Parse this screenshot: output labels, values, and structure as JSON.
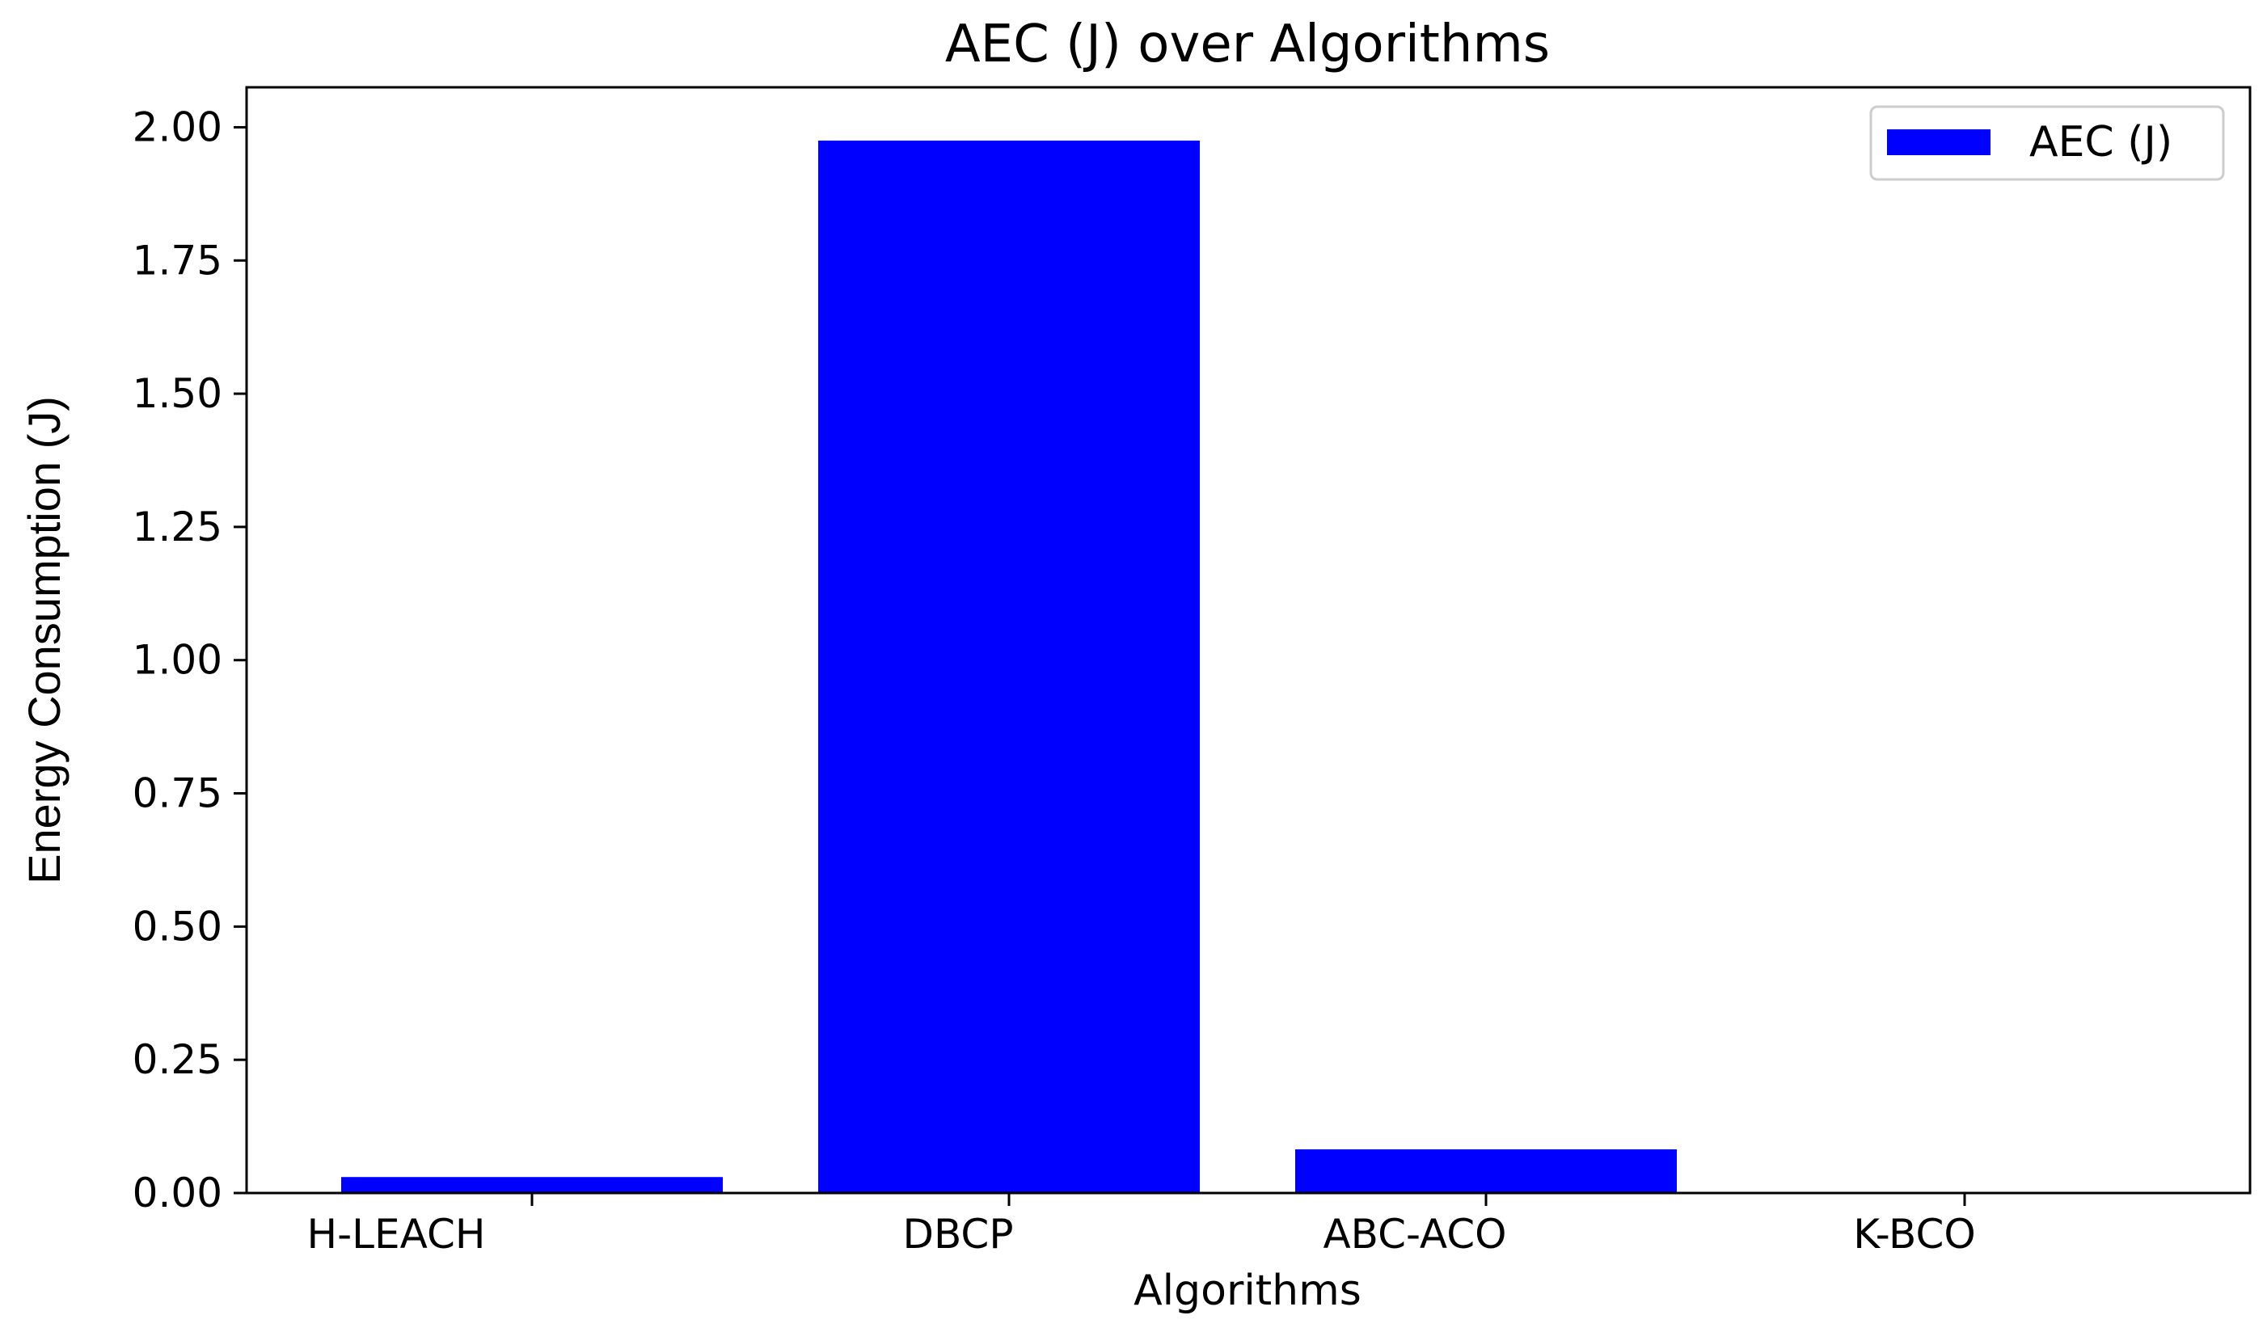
{
  "chart_data": {
    "type": "bar",
    "title": "AEC (J) over Algorithms",
    "xlabel": "Algorithms",
    "ylabel": "Energy Consumption (J)",
    "categories": [
      "H-LEACH",
      "DBCP",
      "ABC-ACO",
      "K-BCO"
    ],
    "series": [
      {
        "name": "AEC (J)",
        "values": [
          0.03,
          1.975,
          0.082,
          0.0
        ],
        "color": "#0000ff"
      }
    ],
    "ylim": [
      0,
      2.075
    ],
    "yticks": [
      "0.00",
      "0.25",
      "0.50",
      "0.75",
      "1.00",
      "1.25",
      "1.50",
      "1.75",
      "2.00"
    ],
    "legend": {
      "placement": "top-right"
    },
    "grid": false
  }
}
